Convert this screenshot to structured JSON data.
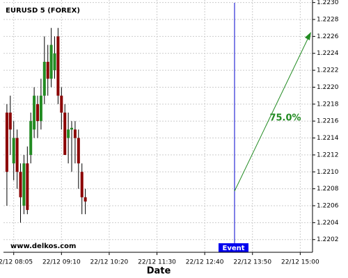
{
  "chart_data": {
    "type": "candlestick",
    "title": "EURUSD 5 (FOREX)",
    "watermark": "www.delkos.com",
    "x_label": "Date",
    "event_label": "Event",
    "annotation": "75.0%",
    "open": [
      1.2217,
      1.2217,
      1.2211,
      1.2214,
      1.221,
      1.2206,
      1.2211,
      1.2212,
      1.2215,
      1.2218,
      1.2216,
      1.2219,
      1.2223,
      1.2221,
      1.2222,
      1.2226,
      1.2219,
      1.2217,
      1.2214,
      1.2215,
      1.2215,
      1.2214,
      1.221,
      1.2207
    ],
    "high": [
      1.2218,
      1.2219,
      1.2216,
      1.2215,
      1.2211,
      1.2212,
      1.2213,
      1.2217,
      1.222,
      1.2219,
      1.2221,
      1.2226,
      1.2225,
      1.2227,
      1.2226,
      1.2227,
      1.222,
      1.2218,
      1.2217,
      1.2216,
      1.2216,
      1.2215,
      1.2211,
      1.2208
    ],
    "low": [
      1.2206,
      1.2212,
      1.2209,
      1.2208,
      1.2204,
      1.2205,
      1.2205,
      1.2211,
      1.2214,
      1.2214,
      1.2215,
      1.2218,
      1.2219,
      1.222,
      1.2221,
      1.2218,
      1.2215,
      1.2212,
      1.2211,
      1.221,
      1.2211,
      1.2208,
      1.2205,
      1.2205
    ],
    "close": [
      1.221,
      1.2215,
      1.2214,
      1.221,
      1.2207,
      1.2211,
      1.22055,
      1.2216,
      1.2219,
      1.2216,
      1.2219,
      1.2223,
      1.2221,
      1.2225,
      1.2224,
      1.2219,
      1.2217,
      1.2212,
      1.2215,
      1.22152,
      1.2214,
      1.2211,
      1.2207,
      1.22065
    ],
    "up_color": "#228b22",
    "down_color": "#8b0000",
    "xlim": [
      -1,
      89.6
    ],
    "xticks": [
      {
        "value": 2,
        "label": "22/12 08:05"
      },
      {
        "value": 16,
        "label": "22/12 09:10"
      },
      {
        "value": 30,
        "label": "22/12 10:20"
      },
      {
        "value": 44,
        "label": "22/12 11:30"
      },
      {
        "value": 58,
        "label": "22/12 12:40"
      },
      {
        "value": 72,
        "label": "22/12 13:50"
      },
      {
        "value": 86,
        "label": "22/12 15:00"
      }
    ],
    "ylim": [
      1.22005,
      1.22303
    ],
    "yticks": [
      1.2202,
      1.2204,
      1.2206,
      1.2208,
      {
        "value": 1.221,
        "label": "1.2210"
      },
      1.2212,
      1.2214,
      1.2216,
      1.2218,
      {
        "value": 1.222,
        "label": "1.2220"
      },
      1.2222,
      1.2224,
      1.2226,
      1.2228,
      {
        "value": 1.223,
        "label": "1.2230"
      }
    ],
    "grid": true
  }
}
